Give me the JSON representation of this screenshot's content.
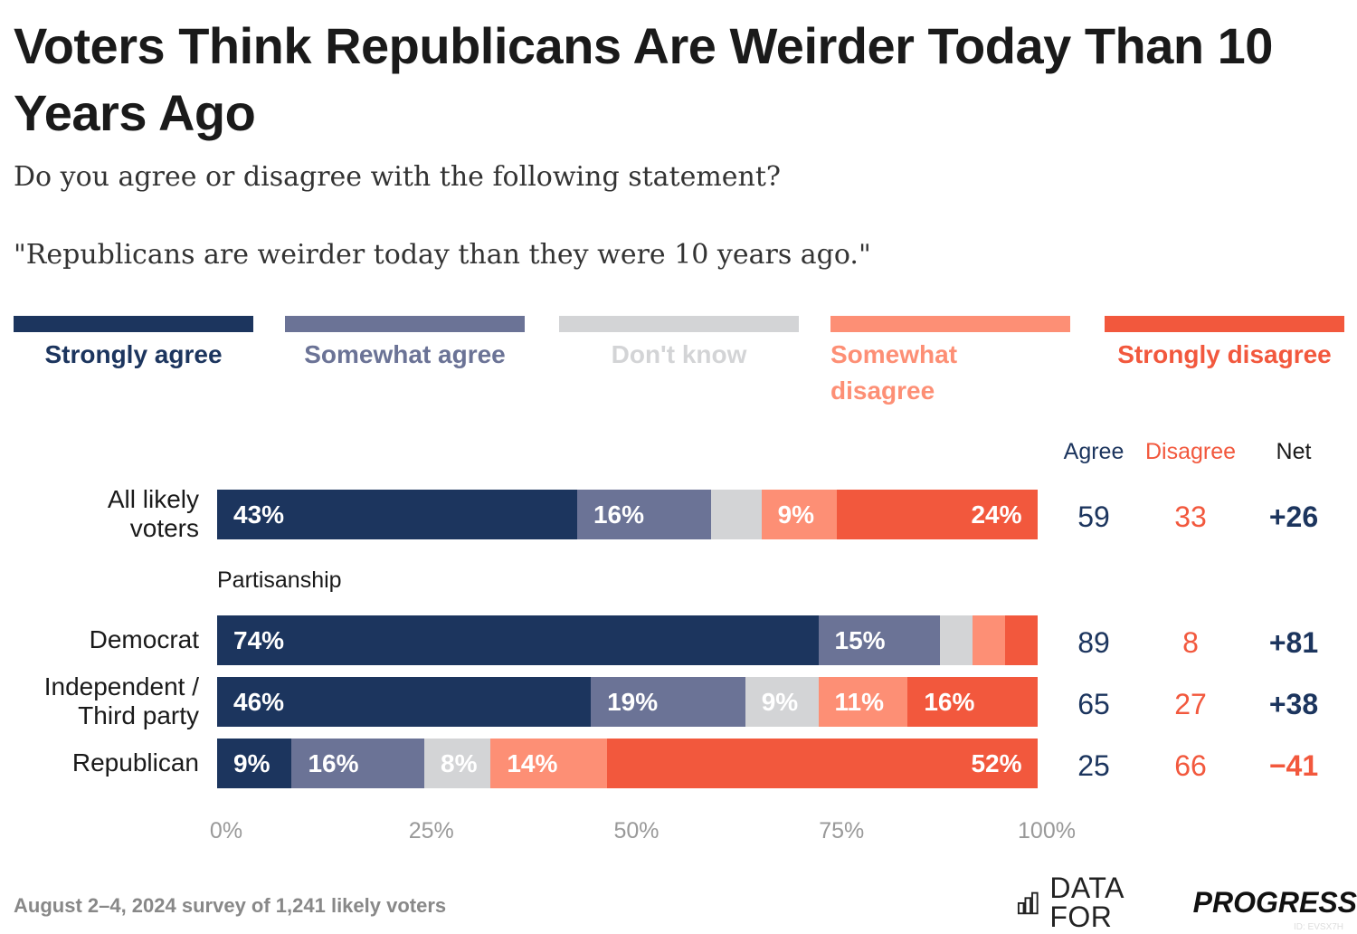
{
  "title": "Voters Think Republicans Are Weirder Today Than 10 Years Ago",
  "subtitle": "Do you agree or disagree with the following statement?",
  "statement": "\"Republicans are weirder today than they were 10 years ago.\"",
  "footer": "August 2–4, 2024 survey of 1,241 likely voters",
  "logo": {
    "text_light": "DATA FOR",
    "text_bold": "PROGRESS",
    "icon": "bar-chart-icon"
  },
  "chart_id": "ID: EVSX7H",
  "chart_data": {
    "type": "bar",
    "orientation": "horizontal-stacked",
    "legend": [
      "Strongly agree",
      "Somewhat agree",
      "Don't know",
      "Somewhat disagree",
      "Strongly disagree"
    ],
    "colors": [
      "#1c355e",
      "#6b7396",
      "#d3d4d6",
      "#fd8f75",
      "#f2583d"
    ],
    "legend_placement": "top",
    "group_label": "Partisanship",
    "column_headers": [
      "Agree",
      "Disagree",
      "Net"
    ],
    "rows": [
      {
        "label": "All likely voters",
        "values": [
          43,
          16,
          6,
          9,
          24
        ],
        "labels": [
          "43%",
          "16%",
          "",
          "9%",
          "24%"
        ],
        "agree": "59",
        "disagree": "33",
        "net": "+26"
      },
      {
        "label": "Democrat",
        "values": [
          74,
          15,
          4,
          4,
          4
        ],
        "labels": [
          "74%",
          "15%",
          "",
          "",
          ""
        ],
        "agree": "89",
        "disagree": "8",
        "net": "+81"
      },
      {
        "label": "Independent / Third party",
        "values": [
          46,
          19,
          9,
          11,
          16
        ],
        "labels": [
          "46%",
          "19%",
          "9%",
          "11%",
          "16%"
        ],
        "agree": "65",
        "disagree": "27",
        "net": "+38"
      },
      {
        "label": "Republican",
        "values": [
          9,
          16,
          8,
          14,
          52
        ],
        "labels": [
          "9%",
          "16%",
          "8%",
          "14%",
          "52%"
        ],
        "agree": "25",
        "disagree": "66",
        "net": "−41"
      }
    ],
    "x_ticks": [
      "0%",
      "25%",
      "50%",
      "75%",
      "100%"
    ],
    "xlim": [
      0,
      100
    ]
  }
}
